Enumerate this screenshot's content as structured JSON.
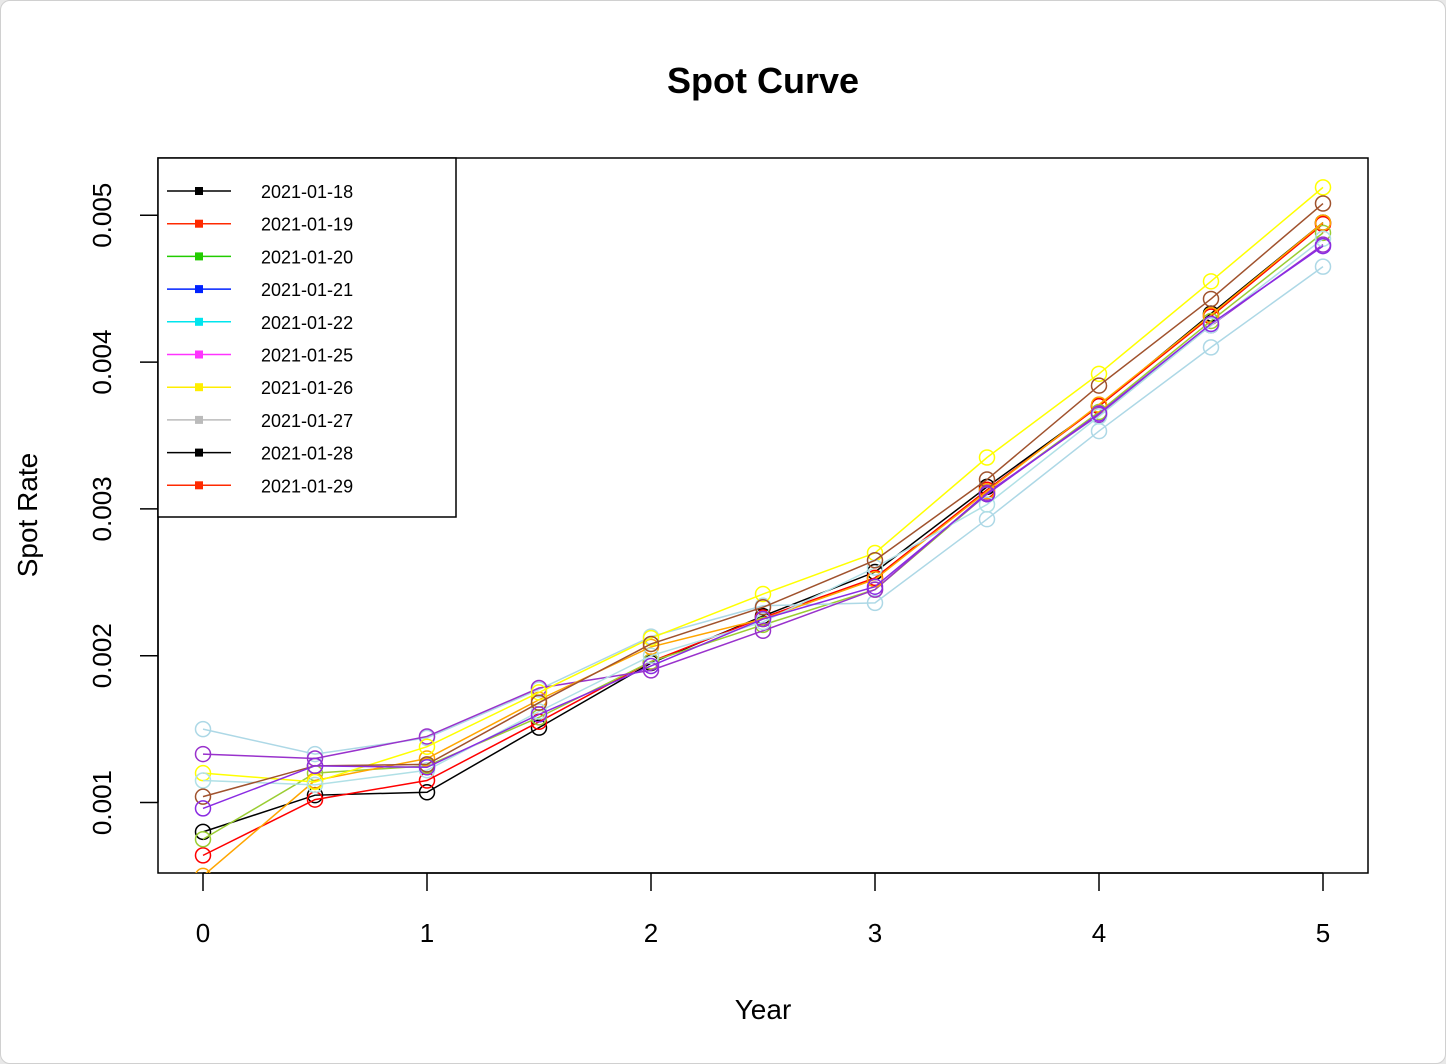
{
  "chart_data": {
    "type": "line",
    "title": "Spot Curve",
    "xlabel": "Year",
    "ylabel": "Spot Rate",
    "xlim": [
      0,
      5
    ],
    "ylim": [
      0.00052,
      0.00539
    ],
    "x_ticks": [
      "0",
      "1",
      "2",
      "3",
      "4",
      "5"
    ],
    "y_ticks": [
      "0.001",
      "0.002",
      "0.003",
      "0.004",
      "0.005"
    ],
    "x": [
      0,
      0.5,
      1,
      1.5,
      2,
      2.5,
      3,
      3.5,
      4,
      4.5,
      5
    ],
    "grid": false,
    "legend_position": "top-left",
    "legend": [
      {
        "label": "2021-01-18",
        "color": "#000000"
      },
      {
        "label": "2021-01-19",
        "color": "#ff2a00"
      },
      {
        "label": "2021-01-20",
        "color": "#22cc00"
      },
      {
        "label": "2021-01-21",
        "color": "#0022ff"
      },
      {
        "label": "2021-01-22",
        "color": "#00e5ee"
      },
      {
        "label": "2021-01-25",
        "color": "#ff33ff"
      },
      {
        "label": "2021-01-26",
        "color": "#ffee00"
      },
      {
        "label": "2021-01-27",
        "color": "#bbbbbb"
      },
      {
        "label": "2021-01-28",
        "color": "#000000"
      },
      {
        "label": "2021-01-29",
        "color": "#ff2a00"
      }
    ],
    "series": [
      {
        "color": "#000000",
        "values": [
          0.0008,
          0.00105,
          0.00107,
          0.00151,
          0.00195,
          0.00227,
          0.00257,
          0.00315,
          0.0037,
          0.00433,
          0.00495
        ]
      },
      {
        "color": "#ff0000",
        "values": [
          0.00064,
          0.00102,
          0.00115,
          0.00155,
          0.00196,
          0.00226,
          0.00253,
          0.00313,
          0.0037,
          0.00431,
          0.00494
        ]
      },
      {
        "color": "#9acd32",
        "values": [
          0.00075,
          0.0012,
          0.00125,
          0.00158,
          0.00196,
          0.00221,
          0.00245,
          0.0031,
          0.00366,
          0.00428,
          0.00488
        ]
      },
      {
        "color": "#add8e6",
        "values": [
          0.0015,
          0.00133,
          0.00144,
          0.00177,
          0.00213,
          0.00234,
          0.00236,
          0.00293,
          0.00353,
          0.0041,
          0.00465
        ]
      },
      {
        "color": "#9932cc",
        "values": [
          0.00133,
          0.0013,
          0.00145,
          0.00178,
          0.0019,
          0.00217,
          0.00245,
          0.00311,
          0.00364,
          0.00425,
          0.0048
        ]
      },
      {
        "color": "#ffa500",
        "values": [
          0.0005,
          0.00115,
          0.0013,
          0.0017,
          0.00206,
          0.00225,
          0.00252,
          0.00312,
          0.00371,
          0.00432,
          0.00495
        ]
      },
      {
        "color": "#ffff00",
        "values": [
          0.0012,
          0.00114,
          0.00138,
          0.00175,
          0.00212,
          0.00242,
          0.0027,
          0.00335,
          0.00392,
          0.00455,
          0.00519
        ]
      },
      {
        "color": "#b0e0e6",
        "values": [
          0.00115,
          0.00112,
          0.00122,
          0.00162,
          0.002,
          0.00223,
          0.0026,
          0.00303,
          0.00363,
          0.00425,
          0.00484
        ]
      },
      {
        "color": "#a0522d",
        "values": [
          0.00104,
          0.00125,
          0.00126,
          0.00168,
          0.00208,
          0.00233,
          0.00265,
          0.0032,
          0.00384,
          0.00443,
          0.00508
        ]
      },
      {
        "color": "#8a2be2",
        "values": [
          0.00096,
          0.00125,
          0.00124,
          0.0016,
          0.00193,
          0.00225,
          0.00247,
          0.0031,
          0.00365,
          0.00426,
          0.00479
        ]
      }
    ]
  }
}
